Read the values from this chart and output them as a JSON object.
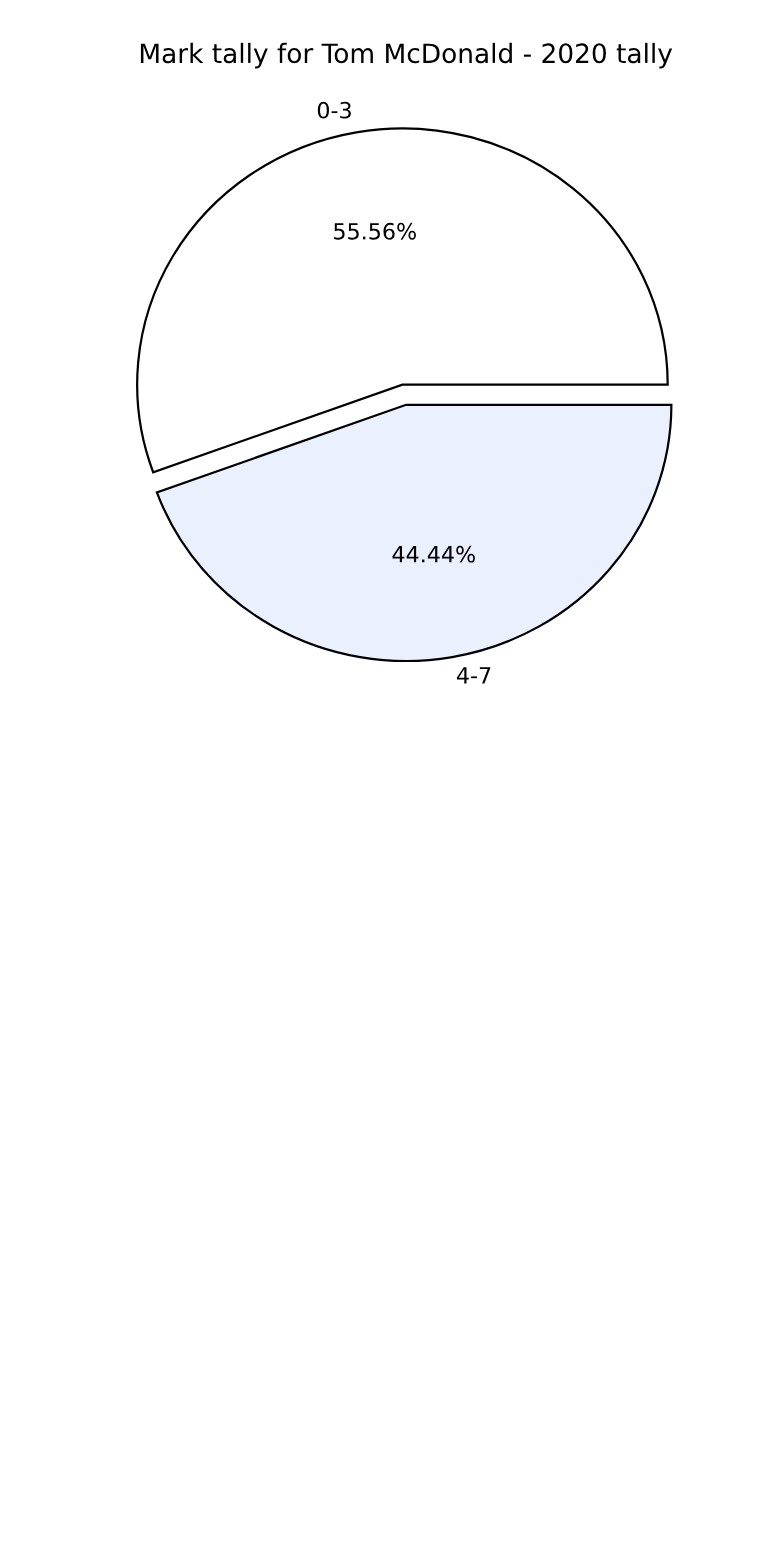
{
  "chart_data": {
    "type": "pie",
    "title": "Mark tally for Tom McDonald - 2020 tally",
    "categories": [
      "0-3",
      "4-7"
    ],
    "values": [
      55.56,
      44.44
    ],
    "value_labels": [
      "55.56%",
      "44.44%"
    ],
    "colors": [
      "#ffffff",
      "#eaf0fd"
    ],
    "legend": false
  }
}
